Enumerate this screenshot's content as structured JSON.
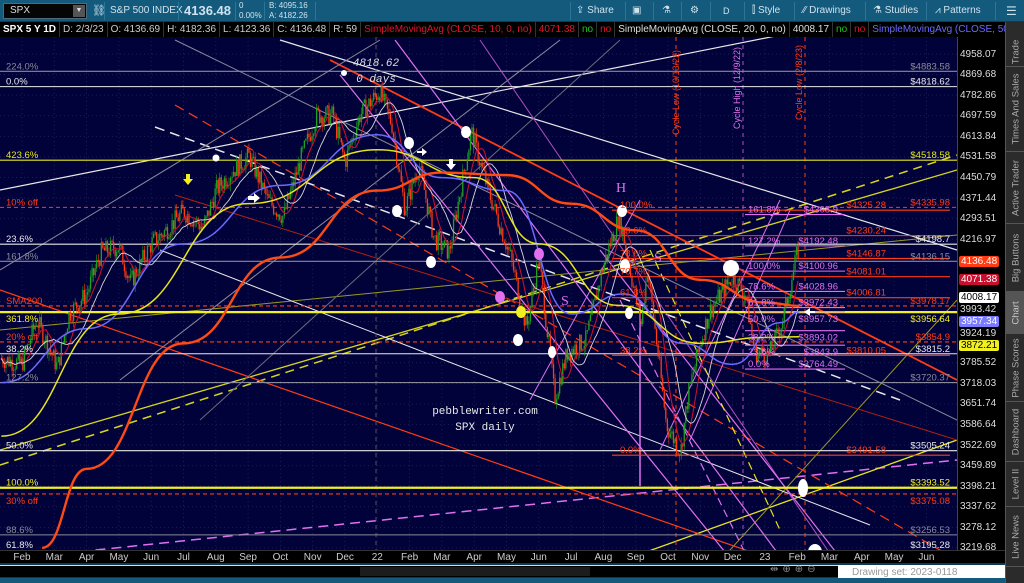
{
  "topbar": {
    "symbol": "SPX",
    "name": "S&P 500 INDEX",
    "last": "4136.48",
    "change": "0",
    "change_pct": "0.00%",
    "bid": "B: 4095.16",
    "ask": "A: 4182.26",
    "share": "Share",
    "period": "D",
    "style": "Style",
    "drawings": "Drawings",
    "studies": "Studies",
    "patterns": "Patterns"
  },
  "infoline": {
    "title": "SPX 5 Y 1D",
    "date": "D: 2/3/23",
    "open": "O: 4136.69",
    "high": "H: 4182.36",
    "low": "L: 4123.36",
    "close": "C: 4136.48",
    "r": "R: 59",
    "sma10": "SimpleMovingAvg (CLOSE, 10, 0, no)",
    "sma10_val": "4071.38",
    "sma20": "SimpleMovingAvg (CLOSE, 20, 0, no)",
    "sma20_val": "4008.17",
    "sma50": "SimpleMovingAvg (CLOSE, 50, 0, no)",
    "no": "no",
    "more": "..."
  },
  "sidebar_tabs": [
    "Trade",
    "Times And Sales",
    "Active Trader",
    "Big Buttons",
    "Chart",
    "Phase Scores",
    "Dashboard",
    "Level II",
    "Live News"
  ],
  "active_tab": "Chart",
  "drawing_set": "Drawing set: 2023-0118",
  "annotations": {
    "peak_price": "4818.62",
    "peak_days": "0 days",
    "watermark1": "pebblewriter.com",
    "watermark2": "SPX daily",
    "h": "H",
    "s": "S",
    "cycle_low_1": "Cycle Low (10/13/22)",
    "cycle_high": "Cycle High (12/9/22)",
    "cycle_low_2": "Cycle Low (2/8/23)"
  },
  "colors": {
    "up": "#1fa21f",
    "down": "#ff3c14",
    "sma10": "#c8102e",
    "sma20": "#d8d8d8",
    "sma50": "#6a6aff",
    "sma100": "#e6e619",
    "sma200": "#ff4a14",
    "fib_magenta": "#e070f0",
    "background": "#02023a"
  },
  "chart_data": {
    "type": "candlestick",
    "scale": "log",
    "ylim": [
      3219.68,
      4958.07
    ],
    "xlim": [
      "2021-01-10",
      "2023-06-15"
    ],
    "x_ticks": [
      "Feb",
      "Mar",
      "Apr",
      "May",
      "Jun",
      "Jul",
      "Aug",
      "Sep",
      "Oct",
      "Nov",
      "Dec",
      "22",
      "Feb",
      "Mar",
      "Apr",
      "May",
      "Jun",
      "Jul",
      "Aug",
      "Sep",
      "Oct",
      "Nov",
      "Dec",
      "23",
      "Feb",
      "Mar",
      "Apr",
      "May",
      "Jun"
    ],
    "y_ticks": [
      "4958.07",
      "4869.68",
      "4782.86",
      "4697.59",
      "4613.84",
      "4531.58",
      "4450.79",
      "4371.44",
      "4293.51",
      "4216.97",
      "3993.42",
      "3924.19",
      "3785.52",
      "3718.03",
      "3651.74",
      "3586.64",
      "3522.69",
      "3459.89",
      "3398.21",
      "3337.62",
      "3278.12",
      "3219.68"
    ],
    "y_tick_values": [
      4958.07,
      4869.68,
      4782.86,
      4697.59,
      4613.84,
      4531.58,
      4450.79,
      4371.44,
      4293.51,
      4216.97,
      3993.42,
      3924.19,
      3785.52,
      3718.03,
      3651.74,
      3586.64,
      3522.69,
      3459.89,
      3398.21,
      3337.62,
      3278.12,
      3219.68
    ],
    "badges": [
      {
        "label": "4136.48",
        "value": 4136.48,
        "bg": "#ff3c14",
        "fg": "#fff"
      },
      {
        "label": "4071.38",
        "value": 4071.38,
        "bg": "#c8102e",
        "fg": "#fff"
      },
      {
        "label": "4008.17",
        "value": 4008.17,
        "bg": "#ffffff",
        "fg": "#000"
      },
      {
        "label": "3957.34",
        "value": 3957.34,
        "bg": "#7b7bff",
        "fg": "#fff"
      },
      {
        "label": "3872.21",
        "value": 3872.21,
        "bg": "#f0f020",
        "fg": "#000"
      }
    ],
    "price": [
      [
        "2021-01-12",
        3800
      ],
      [
        "2021-02-01",
        3780
      ],
      [
        "2021-02-15",
        3930
      ],
      [
        "2021-03-04",
        3770
      ],
      [
        "2021-03-15",
        3950
      ],
      [
        "2021-04-01",
        4020
      ],
      [
        "2021-04-15",
        4170
      ],
      [
        "2021-05-01",
        4190
      ],
      [
        "2021-05-12",
        4060
      ],
      [
        "2021-06-01",
        4200
      ],
      [
        "2021-06-15",
        4250
      ],
      [
        "2021-07-01",
        4320
      ],
      [
        "2021-07-20",
        4260
      ],
      [
        "2021-08-01",
        4400
      ],
      [
        "2021-08-15",
        4470
      ],
      [
        "2021-09-02",
        4535
      ],
      [
        "2021-09-20",
        4360
      ],
      [
        "2021-10-04",
        4300
      ],
      [
        "2021-10-20",
        4520
      ],
      [
        "2021-11-05",
        4700
      ],
      [
        "2021-11-20",
        4700
      ],
      [
        "2021-12-01",
        4510
      ],
      [
        "2021-12-15",
        4700
      ],
      [
        "2022-01-03",
        4800
      ],
      [
        "2022-01-15",
        4660
      ],
      [
        "2022-01-27",
        4330
      ],
      [
        "2022-02-10",
        4500
      ],
      [
        "2022-02-24",
        4220
      ],
      [
        "2022-03-08",
        4170
      ],
      [
        "2022-03-29",
        4630
      ],
      [
        "2022-04-15",
        4390
      ],
      [
        "2022-05-05",
        4150
      ],
      [
        "2022-05-20",
        3900
      ],
      [
        "2022-06-01",
        4150
      ],
      [
        "2022-06-16",
        3670
      ],
      [
        "2022-06-28",
        3820
      ],
      [
        "2022-07-15",
        3860
      ],
      [
        "2022-08-01",
        4120
      ],
      [
        "2022-08-16",
        4305
      ],
      [
        "2022-09-06",
        3910
      ],
      [
        "2022-09-12",
        4110
      ],
      [
        "2022-09-30",
        3585
      ],
      [
        "2022-10-13",
        3500
      ],
      [
        "2022-10-20",
        3680
      ],
      [
        "2022-11-01",
        3850
      ],
      [
        "2022-11-10",
        3960
      ],
      [
        "2022-12-01",
        4080
      ],
      [
        "2022-12-13",
        4020
      ],
      [
        "2022-12-22",
        3820
      ],
      [
        "2023-01-05",
        3810
      ],
      [
        "2023-01-18",
        3930
      ],
      [
        "2023-02-02",
        4180
      ],
      [
        "2023-02-03",
        4136.48
      ]
    ],
    "series": [
      {
        "name": "SimpleMovingAvg (CLOSE, 50, 0, no)",
        "color": "#6a6aff",
        "points": [
          [
            "2021-01-12",
            3720
          ],
          [
            "2021-04-01",
            3900
          ],
          [
            "2021-07-01",
            4200
          ],
          [
            "2021-10-01",
            4420
          ],
          [
            "2022-01-01",
            4620
          ],
          [
            "2022-03-01",
            4450
          ],
          [
            "2022-05-01",
            4400
          ],
          [
            "2022-07-01",
            3950
          ],
          [
            "2022-08-20",
            4020
          ],
          [
            "2022-10-15",
            3850
          ],
          [
            "2022-12-01",
            3780
          ],
          [
            "2023-01-15",
            3920
          ],
          [
            "2023-02-03",
            3957.34
          ]
        ]
      },
      {
        "color": "#e6e619",
        "points": [
          [
            "2021-01-12",
            3550
          ],
          [
            "2021-05-01",
            3950
          ],
          [
            "2021-09-01",
            4350
          ],
          [
            "2022-01-01",
            4560
          ],
          [
            "2022-04-01",
            4450
          ],
          [
            "2022-06-01",
            4200
          ],
          [
            "2022-08-15",
            3980
          ],
          [
            "2022-11-01",
            3850
          ],
          [
            "2023-01-01",
            3870
          ],
          [
            "2023-02-03",
            3872.21
          ]
        ]
      },
      {
        "color": "#ff4a14",
        "points": [
          [
            "2021-02-20",
            3220
          ],
          [
            "2021-04-01",
            3450
          ],
          [
            "2021-07-01",
            3850
          ],
          [
            "2021-10-01",
            4150
          ],
          [
            "2022-01-01",
            4400
          ],
          [
            "2022-03-01",
            4470
          ],
          [
            "2022-05-01",
            4460
          ],
          [
            "2022-07-01",
            4350
          ],
          [
            "2022-09-01",
            4250
          ],
          [
            "2022-11-01",
            4070
          ],
          [
            "2023-01-01",
            3990
          ],
          [
            "2023-02-03",
            3978.17
          ]
        ]
      }
    ],
    "levels": [
      {
        "left": "224.0%",
        "right": "$4883.58",
        "value": 4883.58,
        "color": "#8a8a9a",
        "style": "solid",
        "group": "full"
      },
      {
        "left": "0.0%",
        "right": "$4818.62",
        "value": 4818.62,
        "color": "#e8e8e8",
        "style": "solid",
        "group": "full"
      },
      {
        "left": "423.6%",
        "right": "$4518.58",
        "value": 4518.58,
        "color": "#e6e619",
        "style": "solid",
        "group": "full"
      },
      {
        "left": "10% off",
        "right": "$4335.98",
        "value": 4335.98,
        "color": "#ff3c14",
        "style": "dashed",
        "group": "full"
      },
      {
        "left": "23.6%",
        "right": "$4198.7",
        "value": 4198.7,
        "color": "#e8e8e8",
        "style": "solid",
        "group": "full"
      },
      {
        "left": "161.8%",
        "right": "$4136.15",
        "value": 4136.15,
        "color": "#8a8a9a",
        "style": "solid",
        "group": "full"
      },
      {
        "left": "SMA200",
        "right": "$3978.17",
        "value": 3978.17,
        "color": "#ff3c14",
        "style": "dashed",
        "group": "full"
      },
      {
        "left": "361.8%",
        "right": "$3956.64",
        "value": 3956.64,
        "color": "#f0f020",
        "style": "thick",
        "group": "full"
      },
      {
        "left": "20% off",
        "right": "$3854.9",
        "value": 3854.9,
        "color": "#ff3c14",
        "style": "dashed",
        "group": "full"
      },
      {
        "left": "38.2%",
        "right": "$3815.2",
        "value": 3815.2,
        "color": "#e8e8e8",
        "style": "solid",
        "group": "full"
      },
      {
        "left": "127.2%",
        "right": "$3720.37",
        "value": 3720.37,
        "color": "#8a8a9a",
        "style": "solid",
        "group": "full"
      },
      {
        "left": "50.0%",
        "right": "$3505.24",
        "value": 3505.24,
        "color": "#e8e8e8",
        "style": "solid",
        "group": "full"
      },
      {
        "left": "100.0%",
        "right": "$3393.52",
        "value": 3393.52,
        "color": "#f0f020",
        "style": "thick",
        "group": "full"
      },
      {
        "left": "30% off",
        "right": "$3375.08",
        "value": 3375.08,
        "color": "#ff3c14",
        "style": "dashed",
        "group": "full"
      },
      {
        "left": "88.6%",
        "right": "$3256.53",
        "value": 3256.53,
        "color": "#8a8a9a",
        "style": "solid",
        "group": "full"
      },
      {
        "left": "61.8%",
        "right": "$3195.28",
        "value": 3195.28,
        "color": "#e8e8e8",
        "style": "solid",
        "group": "full"
      },
      {
        "left": "100.0%",
        "right": "$4325.28",
        "value": 4325.28,
        "color": "#ff3c14",
        "style": "solid",
        "group": "red-fib"
      },
      {
        "left": "88.6%",
        "right": "$4230.24",
        "value": 4230.24,
        "color": "#ff3c14",
        "style": "solid",
        "group": "red-fib"
      },
      {
        "left": "78.6%",
        "right": "$4146.87",
        "value": 4146.87,
        "color": "#ff3c14",
        "style": "solid",
        "group": "red-fib"
      },
      {
        "left": "70.7%",
        "right": "$4081.01",
        "value": 4081.01,
        "color": "#ff3c14",
        "style": "solid",
        "group": "red-fib"
      },
      {
        "left": "61.8%",
        "right": "$4006.81",
        "value": 4006.81,
        "color": "#ff3c14",
        "style": "solid",
        "group": "red-fib"
      },
      {
        "left": "38.2%",
        "right": "$3810.05",
        "value": 3810.05,
        "color": "#ff3c14",
        "style": "solid",
        "group": "red-fib"
      },
      {
        "left": "0.0%",
        "right": "$3491.58",
        "value": 3491.58,
        "color": "#ff3c14",
        "style": "solid",
        "group": "red-fib"
      },
      {
        "left": "161.8%",
        "right": "$4308.9",
        "value": 4308.9,
        "color": "#e070f0",
        "style": "solid",
        "group": "magenta-fib"
      },
      {
        "left": "127.2%",
        "right": "$4192.48",
        "value": 4192.48,
        "color": "#e070f0",
        "style": "solid",
        "group": "magenta-fib"
      },
      {
        "left": "100.0%",
        "right": "$4100.96",
        "value": 4100.96,
        "color": "#e070f0",
        "style": "solid",
        "group": "magenta-fib"
      },
      {
        "left": "78.6%",
        "right": "$4028.96",
        "value": 4028.96,
        "color": "#e070f0",
        "style": "solid",
        "group": "magenta-fib"
      },
      {
        "left": "61.8%",
        "right": "$3972.43",
        "value": 3972.43,
        "color": "#e070f0",
        "style": "solid",
        "group": "magenta-fib"
      },
      {
        "left": "50.0%",
        "right": "$3957.73",
        "value": 3957.73,
        "color": "#e070f0",
        "style": "solid",
        "group": "magenta-fib"
      },
      {
        "left": "38.2%",
        "right": "$3893.02",
        "value": 3893.02,
        "color": "#e070f0",
        "style": "solid",
        "group": "magenta-fib"
      },
      {
        "left": "23.6%",
        "right": "$3843.9",
        "value": 3843.9,
        "color": "#e070f0",
        "style": "solid",
        "group": "magenta-fib"
      },
      {
        "left": "0.0%",
        "right": "$3764.49",
        "value": 3764.49,
        "color": "#e070f0",
        "style": "solid",
        "group": "magenta-fib"
      }
    ]
  }
}
